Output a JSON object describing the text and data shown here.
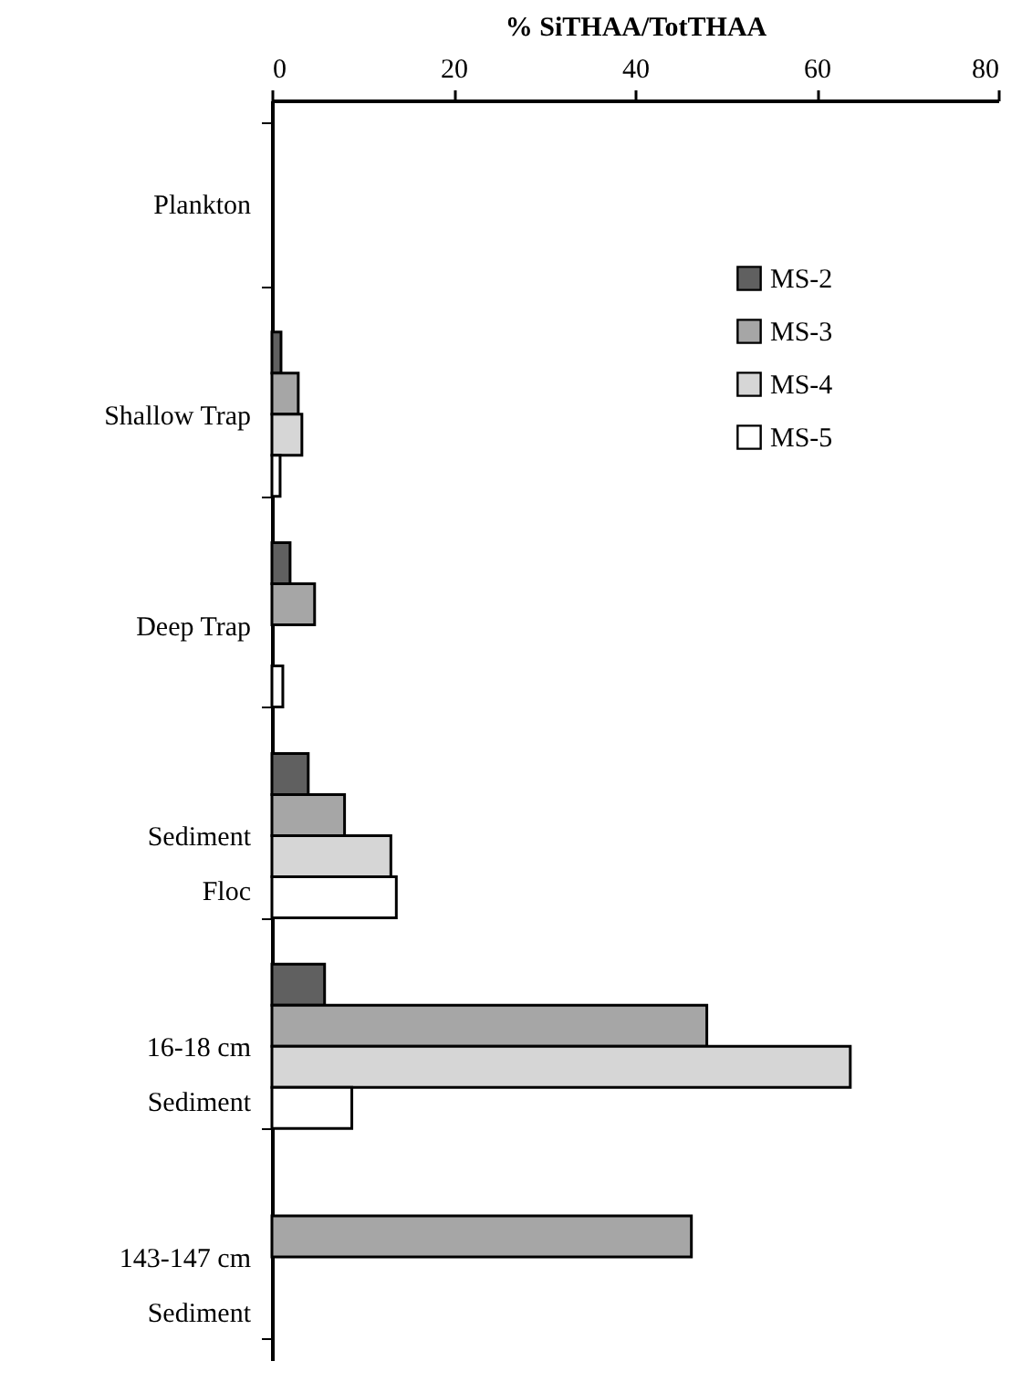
{
  "chart_data": {
    "type": "bar",
    "orientation": "horizontal",
    "xlabel": "% SiTHAA/TotTHAA",
    "categories": [
      "Plankton",
      "Shallow Trap",
      "Deep Trap",
      "Sediment\nFloc",
      "16-18 cm\nSediment",
      "143-147 cm\nSediment"
    ],
    "series": [
      {
        "name": "MS-2",
        "color": "#606060",
        "values": [
          null,
          1.0,
          2.0,
          4.0,
          5.8,
          null
        ]
      },
      {
        "name": "MS-3",
        "color": "#a6a6a6",
        "values": [
          null,
          2.9,
          4.7,
          8.0,
          47.9,
          46.2
        ]
      },
      {
        "name": "MS-4",
        "color": "#d6d6d6",
        "values": [
          null,
          3.3,
          null,
          13.1,
          63.7,
          null
        ]
      },
      {
        "name": "MS-5",
        "color": "#ffffff",
        "values": [
          null,
          0.9,
          1.2,
          13.7,
          8.8,
          null
        ]
      }
    ],
    "xlim": [
      0,
      80
    ],
    "xticks": [
      0,
      20,
      40,
      60,
      80
    ],
    "grid": false,
    "legend": "top right"
  }
}
